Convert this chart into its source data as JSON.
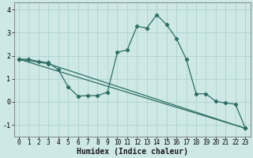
{
  "title": "",
  "xlabel": "Humidex (Indice chaleur)",
  "ylabel": "",
  "bg_color": "#cde8e5",
  "line_color": "#2e6e66",
  "grid_color": "#aacfcc",
  "xlim": [
    -0.5,
    23.5
  ],
  "ylim": [
    -1.5,
    4.3
  ],
  "xticks": [
    0,
    1,
    2,
    3,
    4,
    5,
    6,
    7,
    8,
    9,
    10,
    11,
    12,
    13,
    14,
    15,
    16,
    17,
    18,
    19,
    20,
    21,
    22,
    23
  ],
  "yticks": [
    -1,
    0,
    1,
    2,
    3,
    4
  ],
  "line1_x": [
    0,
    1,
    2,
    3,
    4,
    5,
    6,
    7,
    8,
    9,
    10,
    11,
    12,
    13,
    14,
    15,
    16,
    17,
    18,
    19,
    20,
    21,
    22,
    23
  ],
  "line1_y": [
    1.85,
    1.85,
    1.75,
    1.7,
    1.4,
    0.65,
    0.25,
    0.27,
    0.27,
    0.42,
    2.15,
    2.25,
    3.28,
    3.2,
    3.78,
    3.35,
    2.75,
    1.85,
    0.35,
    0.35,
    0.02,
    -0.05,
    -0.1,
    -1.15
  ],
  "line2_x": [
    0,
    3,
    23
  ],
  "line2_y": [
    1.85,
    1.65,
    -1.15
  ],
  "line3_x": [
    0,
    23
  ],
  "line3_y": [
    1.85,
    -1.15
  ],
  "marker_size": 2.2,
  "line_width": 0.9,
  "xlabel_fontsize": 7,
  "tick_fontsize": 5.5
}
